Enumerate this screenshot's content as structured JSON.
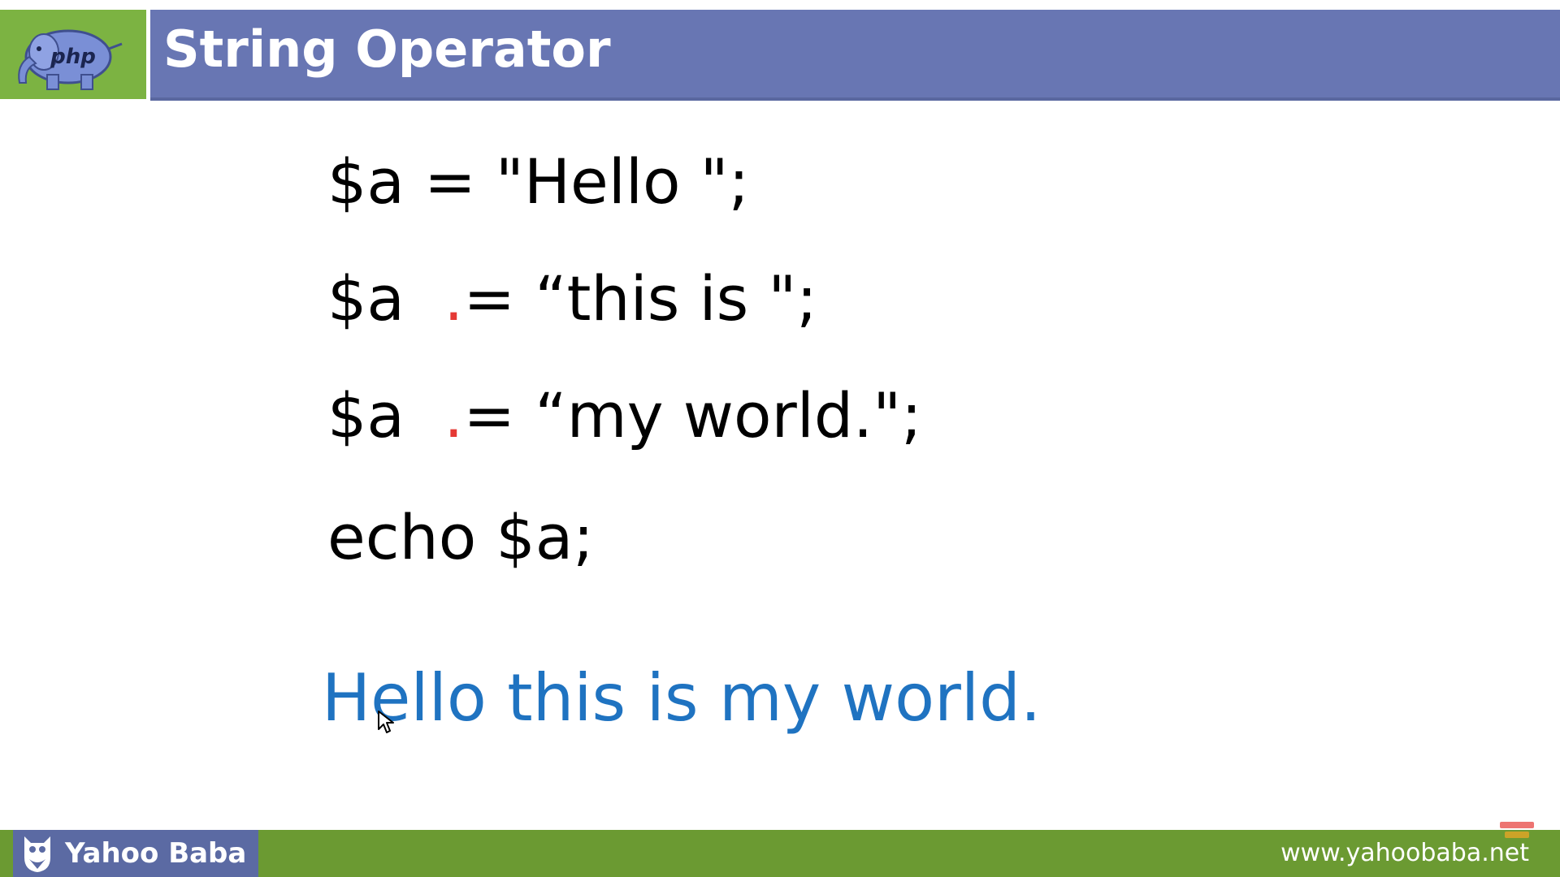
{
  "header": {
    "title": "String Operator",
    "logo_text": "php"
  },
  "code": {
    "line1": "$a = \"Hello \";",
    "line2": {
      "var": "$a  ",
      "dot": ".",
      "rest": "= “this is \";"
    },
    "line3": {
      "var": "$a  ",
      "dot": ".",
      "rest": "= “my world.\";"
    },
    "line4": "echo $a;"
  },
  "output": {
    "text": "Hello this is my world."
  },
  "footer": {
    "brand": "Yahoo Baba",
    "website": "www.yahoobaba.net"
  },
  "colors": {
    "header_bar": "#6876b3",
    "logo_bg": "#7cb342",
    "footer_bar": "#6b9a32",
    "brand_box": "#5b6aa3",
    "concat_dot": "#e53935",
    "output_text": "#1f73c1"
  },
  "icons": {
    "logo": "php-elephant-icon",
    "brand": "owl-mascot-icon",
    "pointer": "mouse-pointer-icon"
  }
}
